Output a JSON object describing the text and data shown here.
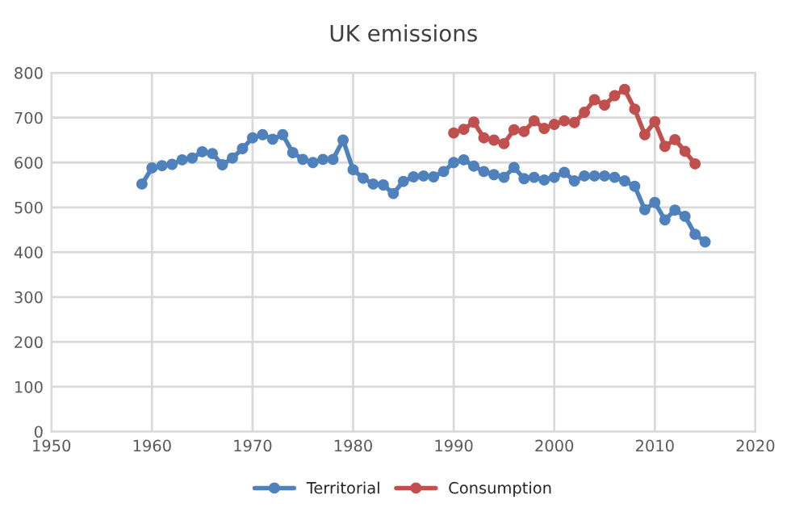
{
  "chart_data": {
    "type": "line",
    "title": "UK emissions",
    "xlim": [
      1950,
      2020
    ],
    "xticks": [
      1950,
      1960,
      1970,
      1980,
      1990,
      2000,
      2010,
      2020
    ],
    "ylim": [
      0,
      800
    ],
    "yticks": [
      0,
      100,
      200,
      300,
      400,
      500,
      600,
      700,
      800
    ],
    "grid": true,
    "legend": "bottom",
    "marker": "circle",
    "line_style": "solid",
    "series": [
      {
        "name": "Territorial",
        "color": "#4f81bd",
        "x": [
          1959,
          1960,
          1961,
          1962,
          1963,
          1964,
          1965,
          1966,
          1967,
          1968,
          1969,
          1970,
          1971,
          1972,
          1973,
          1974,
          1975,
          1976,
          1977,
          1978,
          1979,
          1980,
          1981,
          1982,
          1983,
          1984,
          1985,
          1986,
          1987,
          1988,
          1989,
          1990,
          1991,
          1992,
          1993,
          1994,
          1995,
          1996,
          1997,
          1998,
          1999,
          2000,
          2001,
          2002,
          2003,
          2004,
          2005,
          2006,
          2007,
          2008,
          2009,
          2010,
          2011,
          2012,
          2013,
          2014,
          2015
        ],
        "values": [
          552,
          588,
          593,
          596,
          606,
          610,
          624,
          620,
          595,
          610,
          631,
          655,
          662,
          652,
          662,
          622,
          607,
          600,
          607,
          607,
          650,
          584,
          565,
          552,
          550,
          531,
          558,
          568,
          570,
          568,
          580,
          600,
          606,
          592,
          580,
          573,
          567,
          589,
          564,
          567,
          561,
          567,
          578,
          559,
          570,
          570,
          570,
          567,
          559,
          547,
          495,
          511,
          472,
          494,
          480,
          440,
          423
        ]
      },
      {
        "name": "Consumption",
        "color": "#c0504d",
        "x": [
          1990,
          1991,
          1992,
          1993,
          1994,
          1995,
          1996,
          1997,
          1998,
          1999,
          2000,
          2001,
          2002,
          2003,
          2004,
          2005,
          2006,
          2007,
          2008,
          2009,
          2010,
          2011,
          2012,
          2013,
          2014
        ],
        "values": [
          666,
          674,
          690,
          655,
          650,
          642,
          673,
          669,
          693,
          676,
          685,
          693,
          689,
          712,
          740,
          728,
          749,
          763,
          719,
          662,
          691,
          636,
          651,
          625,
          597
        ]
      }
    ]
  }
}
